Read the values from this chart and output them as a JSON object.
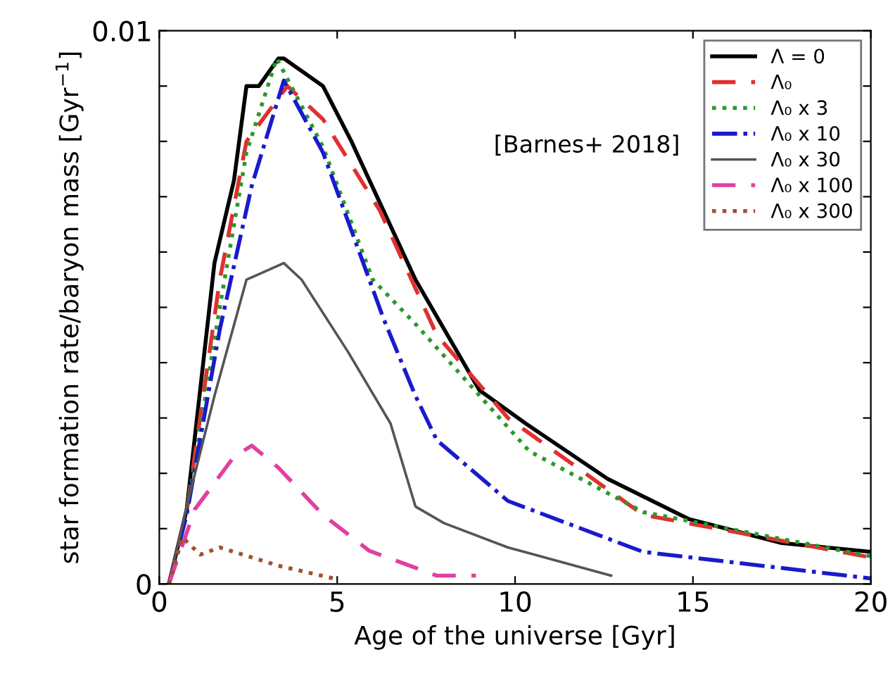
{
  "chart_data": {
    "type": "line",
    "xlabel": "Age of the universe [Gyr]",
    "ylabel": "star formation rate/baryon mass [Gyr$^{−1}$]",
    "annotations": [
      "[Barnes+ 2018]"
    ],
    "xlim": [
      0,
      20
    ],
    "xticks": [
      0,
      5,
      10,
      15,
      20
    ],
    "ylim": [
      0,
      0.01
    ],
    "yticks": [
      0,
      {
        "value": 0.001,
        "label": null
      },
      {
        "value": 0.002,
        "label": null
      },
      {
        "value": 0.003,
        "label": null
      },
      {
        "value": 0.004,
        "label": null
      },
      {
        "value": 0.005,
        "label": null
      },
      {
        "value": 0.006,
        "label": null
      },
      {
        "value": 0.007,
        "label": null
      },
      {
        "value": 0.008,
        "label": null
      },
      {
        "value": 0.009,
        "label": null
      },
      {
        "value": 0.01,
        "label": "0.01"
      }
    ],
    "grid": false,
    "legend": "top right",
    "series": [
      {
        "name": "Λ = 0",
        "color": "#000000",
        "line_style": "solid",
        "x": [
          0.27,
          0.77,
          1.55,
          2.1,
          2.45,
          2.8,
          3.35,
          3.5,
          4.6,
          5.4,
          6.3,
          7.2,
          9,
          10.3,
          12.6,
          14.9,
          17.5,
          20
        ],
        "values": [
          0,
          0.00135,
          0.0058,
          0.0073,
          0.009,
          0.009,
          0.0095,
          0.0095,
          0.009,
          0.008,
          0.00675,
          0.0055,
          0.0035,
          0.0029,
          0.0019,
          0.00117,
          0.00074,
          0.00058
        ]
      },
      {
        "name": "Λ₀",
        "color": "#e03030",
        "line_style": "dashed",
        "x": [
          0.27,
          0.77,
          1.7,
          2.45,
          3.6,
          4.6,
          6.2,
          7.8,
          9.8,
          13.6,
          20
        ],
        "values": [
          0,
          0.0013,
          0.0055,
          0.008,
          0.009,
          0.0084,
          0.00675,
          0.0045,
          0.003,
          0.00125,
          0.00048
        ]
      },
      {
        "name": "Λ₀ x 3",
        "color": "#2a9a2a",
        "line_style": "dotted",
        "x": [
          0.27,
          0.77,
          1.7,
          2.45,
          3.3,
          4.6,
          6,
          7.2,
          10.4,
          13.6,
          20
        ],
        "values": [
          0,
          0.0013,
          0.005,
          0.0078,
          0.0095,
          0.0079,
          0.0055,
          0.0047,
          0.0024,
          0.0013,
          0.0005
        ]
      },
      {
        "name": "Λ₀ x 10",
        "color": "#1a1acc",
        "line_style": "dashdot",
        "x": [
          0.27,
          0.77,
          1.7,
          2.6,
          3.5,
          4.6,
          6.3,
          7.2,
          7.8,
          9.8,
          13.6,
          20
        ],
        "values": [
          0,
          0.00125,
          0.0046,
          0.0072,
          0.0091,
          0.0078,
          0.0048,
          0.0034,
          0.0026,
          0.0015,
          0.00058,
          0.0001
        ]
      },
      {
        "name": "Λ₀ x 30",
        "color": "#555555",
        "line_style": "solid",
        "x": [
          0.27,
          0.77,
          1.55,
          2.45,
          2.8,
          3.5,
          4,
          5.3,
          6.5,
          7.2,
          8,
          9.8,
          12.7
        ],
        "values": [
          0,
          0.0014,
          0.0034,
          0.0055,
          0.0056,
          0.0058,
          0.0055,
          0.0042,
          0.0029,
          0.0014,
          0.0011,
          0.00066,
          0.00015
        ]
      },
      {
        "name": "Λ₀ x 100",
        "color": "#e040a0",
        "line_style": "dashed",
        "x": [
          0.27,
          1.0,
          2.1,
          2.6,
          3.35,
          4.6,
          5.9,
          7.8,
          8.9
        ],
        "values": [
          0,
          0.00135,
          0.0023,
          0.0025,
          0.0021,
          0.00125,
          0.0006,
          0.00015,
          0.00015
        ]
      },
      {
        "name": "Λ₀ x 300",
        "color": "#a0522d",
        "line_style": "dotted",
        "x": [
          0.27,
          0.65,
          1.15,
          1.7,
          3.35,
          4.9
        ],
        "values": [
          0,
          0.00084,
          0.00053,
          0.00066,
          0.00033,
          0.0001
        ]
      }
    ]
  }
}
